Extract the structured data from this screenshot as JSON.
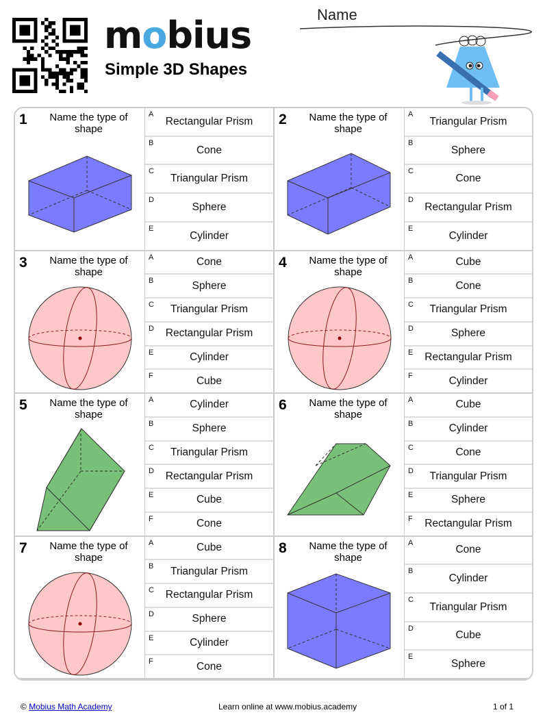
{
  "header": {
    "logo": "mobius",
    "title": "Simple 3D Shapes",
    "name_label": "Name"
  },
  "prompt": "Name the type of shape",
  "questions": [
    {
      "number": "1",
      "shape": "rect-prism-a",
      "options": [
        [
          "A",
          "Rectangular Prism"
        ],
        [
          "B",
          "Cone"
        ],
        [
          "C",
          "Triangular Prism"
        ],
        [
          "D",
          "Sphere"
        ],
        [
          "E",
          "Cylinder"
        ]
      ]
    },
    {
      "number": "2",
      "shape": "rect-prism-b",
      "options": [
        [
          "A",
          "Triangular Prism"
        ],
        [
          "B",
          "Sphere"
        ],
        [
          "C",
          "Cone"
        ],
        [
          "D",
          "Rectangular Prism"
        ],
        [
          "E",
          "Cylinder"
        ]
      ]
    },
    {
      "number": "3",
      "shape": "sphere",
      "options": [
        [
          "A",
          "Cone"
        ],
        [
          "B",
          "Sphere"
        ],
        [
          "C",
          "Triangular Prism"
        ],
        [
          "D",
          "Rectangular Prism"
        ],
        [
          "E",
          "Cylinder"
        ],
        [
          "F",
          "Cube"
        ]
      ]
    },
    {
      "number": "4",
      "shape": "sphere",
      "options": [
        [
          "A",
          "Cube"
        ],
        [
          "B",
          "Cone"
        ],
        [
          "C",
          "Triangular Prism"
        ],
        [
          "D",
          "Sphere"
        ],
        [
          "E",
          "Rectangular Prism"
        ],
        [
          "F",
          "Cylinder"
        ]
      ]
    },
    {
      "number": "5",
      "shape": "tri-prism-a",
      "options": [
        [
          "A",
          "Cylinder"
        ],
        [
          "B",
          "Sphere"
        ],
        [
          "C",
          "Triangular Prism"
        ],
        [
          "D",
          "Rectangular Prism"
        ],
        [
          "E",
          "Cube"
        ],
        [
          "F",
          "Cone"
        ]
      ]
    },
    {
      "number": "6",
      "shape": "tri-prism-b",
      "options": [
        [
          "A",
          "Cube"
        ],
        [
          "B",
          "Cylinder"
        ],
        [
          "C",
          "Cone"
        ],
        [
          "D",
          "Triangular Prism"
        ],
        [
          "E",
          "Sphere"
        ],
        [
          "F",
          "Rectangular Prism"
        ]
      ]
    },
    {
      "number": "7",
      "shape": "sphere",
      "options": [
        [
          "A",
          "Cube"
        ],
        [
          "B",
          "Triangular Prism"
        ],
        [
          "C",
          "Rectangular Prism"
        ],
        [
          "D",
          "Sphere"
        ],
        [
          "E",
          "Cylinder"
        ],
        [
          "F",
          "Cone"
        ]
      ]
    },
    {
      "number": "8",
      "shape": "cube",
      "options": [
        [
          "A",
          "Cone"
        ],
        [
          "B",
          "Cylinder"
        ],
        [
          "C",
          "Triangular Prism"
        ],
        [
          "D",
          "Cube"
        ],
        [
          "E",
          "Sphere"
        ]
      ]
    }
  ],
  "footer": {
    "copyright": "©",
    "link": "Mobius Math Academy",
    "center": "Learn online at www.mobius.academy",
    "page": "1 of 1"
  },
  "colors": {
    "box": "#7b7bff",
    "sphere": "#ffc8c8",
    "prism": "#78c078",
    "border": "#cccccc"
  }
}
